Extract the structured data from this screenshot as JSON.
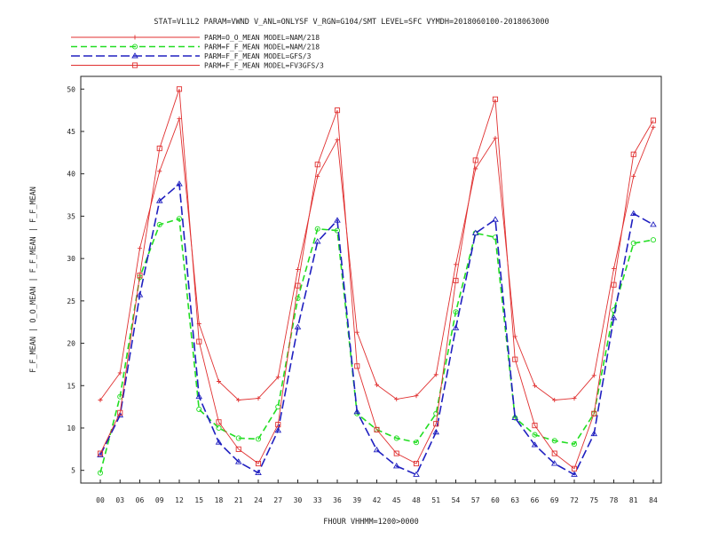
{
  "chart_data": {
    "type": "line",
    "title": "STAT=VL1L2 PARAM=VWND V_ANL=ONLYSF V_RGN=G104/SMT LEVEL=SFC VYMDH=2018060100-2018063000",
    "xlabel": "FHOUR VHHMM=1200>0000",
    "ylabel": "F_F_MEAN | O_O_MEAN | F_F_MEAN | F_F_MEAN",
    "ylim": [
      3.5,
      51.5
    ],
    "yticks": [
      5,
      10,
      15,
      20,
      25,
      30,
      35,
      40,
      45,
      50
    ],
    "grid": false,
    "legend_position": "top-left",
    "categories": [
      "00",
      "03",
      "06",
      "09",
      "12",
      "15",
      "18",
      "21",
      "24",
      "27",
      "30",
      "33",
      "36",
      "39",
      "42",
      "45",
      "48",
      "51",
      "54",
      "57",
      "60",
      "63",
      "66",
      "69",
      "72",
      "75",
      "78",
      "81",
      "84"
    ],
    "series": [
      {
        "name": "PARM=O_O_MEAN MODEL=NAM/218",
        "color": "#e03030",
        "dash": "solid",
        "marker": "plus",
        "values": [
          13.3,
          16.5,
          31.2,
          40.3,
          46.5,
          22.3,
          15.5,
          13.3,
          13.5,
          16.0,
          28.7,
          39.7,
          44.0,
          21.3,
          15.1,
          13.4,
          13.8,
          16.3,
          29.3,
          40.6,
          44.2,
          20.8,
          15.0,
          13.3,
          13.5,
          16.2,
          28.8,
          39.7,
          45.5
        ]
      },
      {
        "name": "PARM=F_F_MEAN MODEL=NAM/218",
        "color": "#22dd22",
        "dash": "7,4",
        "marker": "circle",
        "values": [
          4.7,
          13.7,
          27.8,
          34.0,
          34.7,
          12.2,
          10.0,
          8.8,
          8.7,
          12.5,
          25.3,
          33.5,
          33.3,
          11.7,
          9.8,
          8.8,
          8.3,
          11.7,
          23.7,
          33.0,
          32.5,
          11.2,
          9.2,
          8.5,
          8.1,
          11.7,
          23.9,
          31.8,
          32.2
        ]
      },
      {
        "name": "PARM=F_F_MEAN MODEL=GFS/3",
        "color": "#2020c0",
        "dash": "10,4",
        "marker": "triangle",
        "values": [
          6.8,
          11.5,
          25.7,
          36.8,
          38.8,
          13.7,
          8.3,
          6.0,
          4.7,
          9.7,
          21.9,
          32.0,
          34.5,
          11.9,
          7.4,
          5.5,
          4.5,
          9.5,
          21.8,
          33.0,
          34.6,
          11.2,
          8.0,
          5.8,
          4.5,
          9.3,
          23.0,
          35.3,
          34.0
        ]
      },
      {
        "name": "PARM=F_F_MEAN MODEL=FV3GFS/3",
        "color": "#e03030",
        "dash": "solid",
        "marker": "square",
        "values": [
          7.0,
          11.8,
          28.0,
          43.0,
          50.0,
          20.2,
          10.7,
          7.5,
          5.8,
          10.4,
          26.8,
          41.1,
          47.5,
          17.3,
          9.8,
          7.0,
          5.8,
          10.5,
          27.4,
          41.6,
          48.8,
          18.1,
          10.3,
          7.0,
          5.2,
          11.7,
          26.9,
          42.3,
          46.3
        ]
      }
    ]
  }
}
